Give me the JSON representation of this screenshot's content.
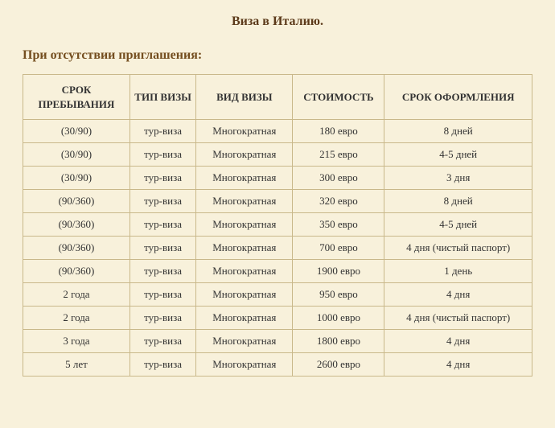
{
  "title": "Виза в Италию.",
  "subtitle": "При отсутствии приглашения:",
  "table": {
    "columns": [
      "СРОК ПРЕБЫВАНИЯ",
      "ТИП ВИЗЫ",
      "ВИД ВИЗЫ",
      "СТОИМОСТЬ",
      "СРОК ОФОРМЛЕНИЯ"
    ],
    "rows": [
      [
        "(30/90)",
        "тур-виза",
        "Многократная",
        "180 евро",
        "8 дней"
      ],
      [
        "(30/90)",
        "тур-виза",
        "Многократная",
        "215 евро",
        "4-5 дней"
      ],
      [
        "(30/90)",
        "тур-виза",
        "Многократная",
        "300 евро",
        "3 дня"
      ],
      [
        "(90/360)",
        "тур-виза",
        "Многократная",
        "320 евро",
        "8 дней"
      ],
      [
        "(90/360)",
        "тур-виза",
        "Многократная",
        "350 евро",
        "4-5 дней"
      ],
      [
        "(90/360)",
        "тур-виза",
        "Многократная",
        "700 евро",
        "4 дня (чистый паспорт)"
      ],
      [
        "(90/360)",
        "тур-виза",
        "Многократная",
        "1900 евро",
        "1 день"
      ],
      [
        "2 года",
        "тур-виза",
        "Многократная",
        "950 евро",
        "4 дня"
      ],
      [
        "2 года",
        "тур-виза",
        "Многократная",
        "1000 евро",
        "4 дня (чистый паспорт)"
      ],
      [
        "3 года",
        "тур-виза",
        "Многократная",
        "1800 евро",
        "4 дня"
      ],
      [
        "5 лет",
        "тур-виза",
        "Многократная",
        "2600 евро",
        "4 дня"
      ]
    ],
    "col_widths_pct": [
      21,
      13,
      19,
      18,
      29
    ],
    "border_color": "#c9b88a",
    "background_color": "#f8f1db",
    "header_fontsize": 13,
    "cell_fontsize": 13
  },
  "colors": {
    "page_bg": "#f8f1db",
    "title_color": "#5c3a1a",
    "subtitle_color": "#744e1f",
    "border_color": "#c9b88a",
    "text_color": "#333333"
  }
}
